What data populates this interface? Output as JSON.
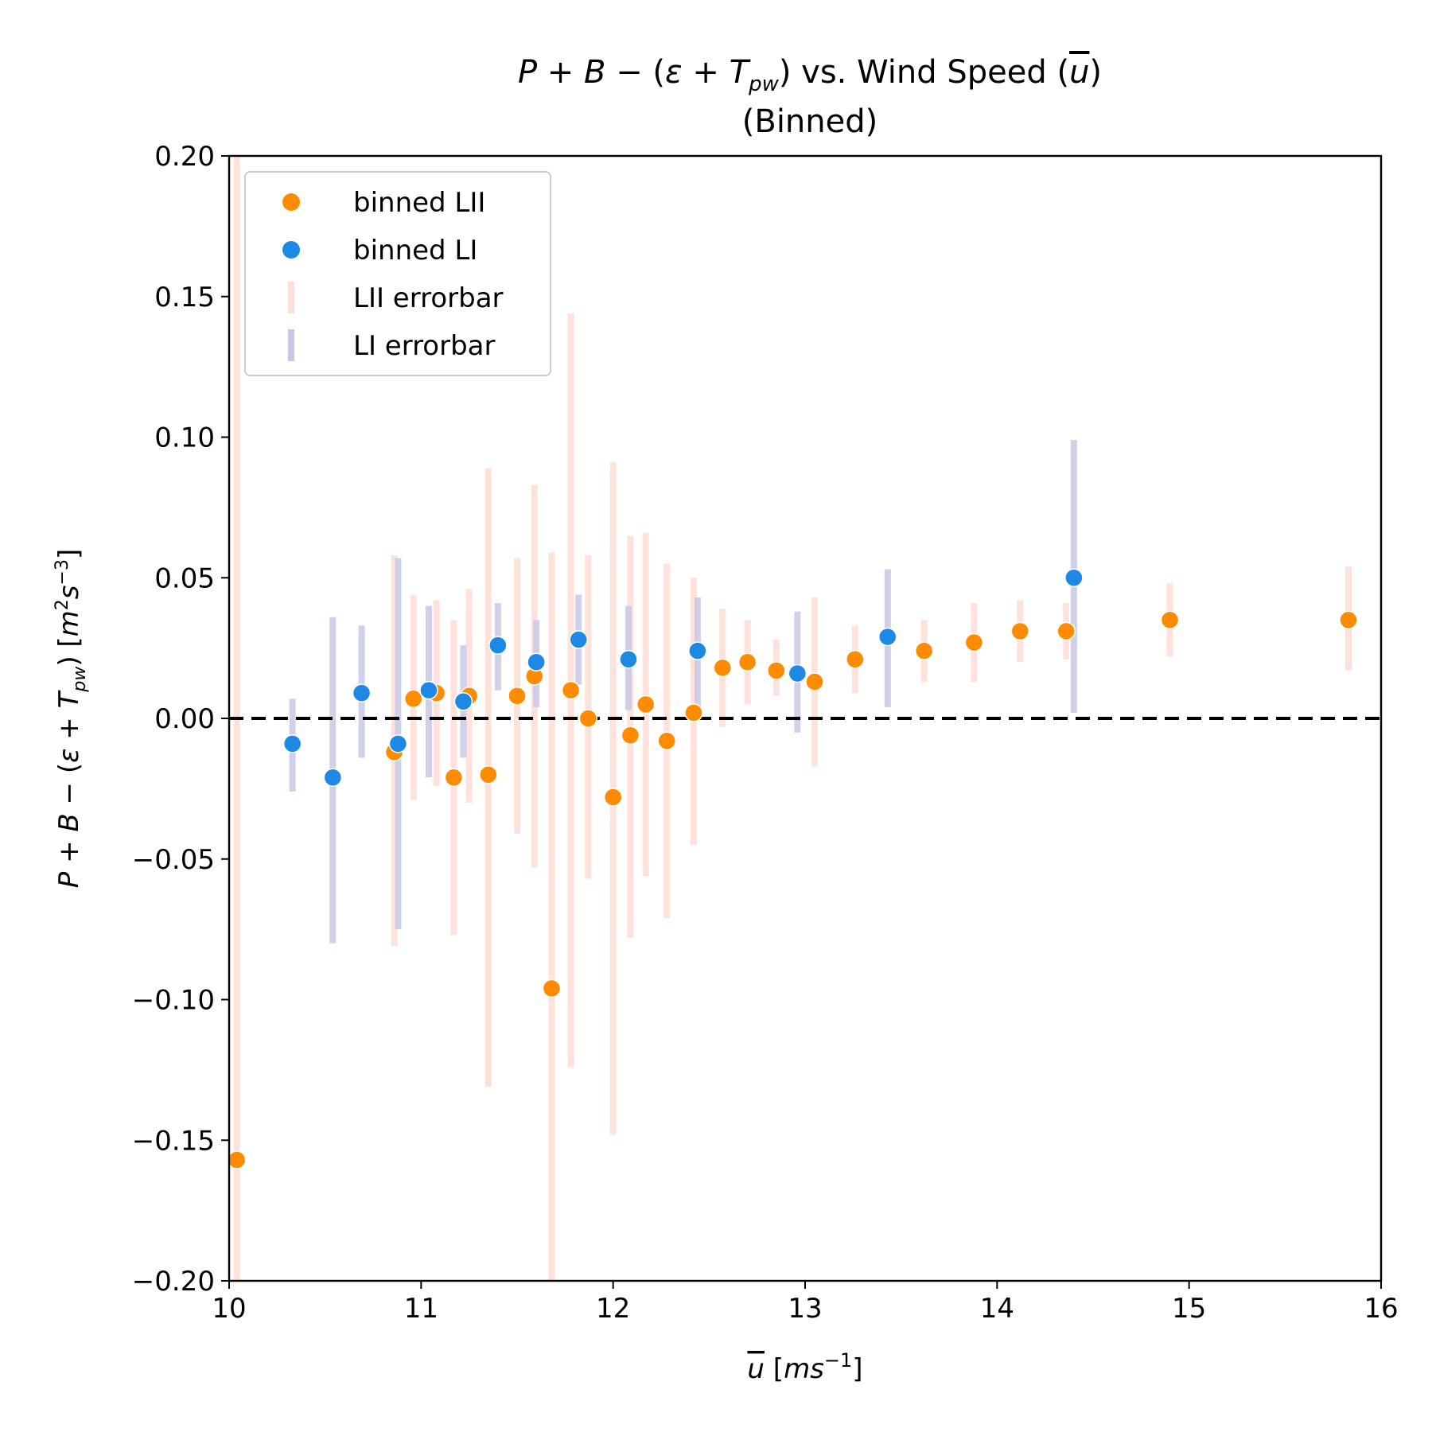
{
  "chart_data": {
    "type": "scatter",
    "title": "P + B − (ε + T_pw) vs. Wind Speed (ū)",
    "subtitle": "(Binned)",
    "xlabel": "ū [ms⁻¹]",
    "ylabel": "P + B − (ε + T_pw) [m²s⁻³]",
    "xlim": [
      10,
      16
    ],
    "ylim": [
      -0.2,
      0.2
    ],
    "x_ticks": [
      10,
      11,
      12,
      13,
      14,
      15,
      16
    ],
    "y_ticks": [
      -0.2,
      -0.15,
      -0.1,
      -0.05,
      0.0,
      0.05,
      0.1,
      0.15,
      0.2
    ],
    "x_tick_labels": [
      "10",
      "11",
      "12",
      "13",
      "14",
      "15",
      "16"
    ],
    "y_tick_labels": [
      "−0.20",
      "−0.15",
      "−0.10",
      "−0.05",
      "0.00",
      "0.05",
      "0.10",
      "0.15",
      "0.20"
    ],
    "reference_line": {
      "y": 0.0,
      "style": "dashed",
      "color": "#000000"
    },
    "legend_position": "upper-left",
    "legend": [
      "binned LII",
      "binned LI",
      "LII errorbar",
      "LI errorbar"
    ],
    "series": [
      {
        "name": "binned LII",
        "color": "#ff8c00",
        "errorbar_color": "#ffdfd8",
        "points": [
          {
            "x": 10.04,
            "y": -0.157,
            "lo": -0.2,
            "hi": 0.2
          },
          {
            "x": 10.86,
            "y": -0.012,
            "lo": -0.081,
            "hi": 0.058
          },
          {
            "x": 10.96,
            "y": 0.007,
            "lo": -0.029,
            "hi": 0.044
          },
          {
            "x": 11.08,
            "y": 0.009,
            "lo": -0.024,
            "hi": 0.042
          },
          {
            "x": 11.17,
            "y": -0.021,
            "lo": -0.077,
            "hi": 0.035
          },
          {
            "x": 11.25,
            "y": 0.008,
            "lo": -0.03,
            "hi": 0.046
          },
          {
            "x": 11.35,
            "y": -0.02,
            "lo": -0.131,
            "hi": 0.089
          },
          {
            "x": 11.5,
            "y": 0.008,
            "lo": -0.041,
            "hi": 0.057
          },
          {
            "x": 11.59,
            "y": 0.015,
            "lo": -0.053,
            "hi": 0.083
          },
          {
            "x": 11.68,
            "y": -0.096,
            "lo": -0.2,
            "hi": 0.059
          },
          {
            "x": 11.78,
            "y": 0.01,
            "lo": -0.124,
            "hi": 0.144
          },
          {
            "x": 11.87,
            "y": 0.0,
            "lo": -0.057,
            "hi": 0.058
          },
          {
            "x": 12.0,
            "y": -0.028,
            "lo": -0.148,
            "hi": 0.091
          },
          {
            "x": 12.09,
            "y": -0.006,
            "lo": -0.078,
            "hi": 0.065
          },
          {
            "x": 12.17,
            "y": 0.005,
            "lo": -0.056,
            "hi": 0.066
          },
          {
            "x": 12.28,
            "y": -0.008,
            "lo": -0.071,
            "hi": 0.055
          },
          {
            "x": 12.42,
            "y": 0.002,
            "lo": -0.045,
            "hi": 0.05
          },
          {
            "x": 12.57,
            "y": 0.018,
            "lo": -0.003,
            "hi": 0.039
          },
          {
            "x": 12.7,
            "y": 0.02,
            "lo": 0.005,
            "hi": 0.035
          },
          {
            "x": 12.85,
            "y": 0.017,
            "lo": 0.008,
            "hi": 0.028
          },
          {
            "x": 13.05,
            "y": 0.013,
            "lo": -0.017,
            "hi": 0.043
          },
          {
            "x": 13.26,
            "y": 0.021,
            "lo": 0.009,
            "hi": 0.033
          },
          {
            "x": 13.62,
            "y": 0.024,
            "lo": 0.013,
            "hi": 0.035
          },
          {
            "x": 13.88,
            "y": 0.027,
            "lo": 0.013,
            "hi": 0.041
          },
          {
            "x": 14.12,
            "y": 0.031,
            "lo": 0.02,
            "hi": 0.042
          },
          {
            "x": 14.36,
            "y": 0.031,
            "lo": 0.021,
            "hi": 0.041
          },
          {
            "x": 14.9,
            "y": 0.035,
            "lo": 0.022,
            "hi": 0.048
          },
          {
            "x": 15.83,
            "y": 0.035,
            "lo": 0.017,
            "hi": 0.054
          }
        ]
      },
      {
        "name": "binned LI",
        "color": "#1e88e5",
        "errorbar_color": "#c8c8e4",
        "points": [
          {
            "x": 10.33,
            "y": -0.009,
            "lo": -0.026,
            "hi": 0.007
          },
          {
            "x": 10.54,
            "y": -0.021,
            "lo": -0.08,
            "hi": 0.036
          },
          {
            "x": 10.69,
            "y": 0.009,
            "lo": -0.014,
            "hi": 0.033
          },
          {
            "x": 10.88,
            "y": -0.009,
            "lo": -0.075,
            "hi": 0.057
          },
          {
            "x": 11.04,
            "y": 0.01,
            "lo": -0.021,
            "hi": 0.04
          },
          {
            "x": 11.22,
            "y": 0.006,
            "lo": -0.014,
            "hi": 0.026
          },
          {
            "x": 11.4,
            "y": 0.026,
            "lo": 0.01,
            "hi": 0.041
          },
          {
            "x": 11.6,
            "y": 0.02,
            "lo": 0.004,
            "hi": 0.035
          },
          {
            "x": 11.82,
            "y": 0.028,
            "lo": 0.012,
            "hi": 0.044
          },
          {
            "x": 12.08,
            "y": 0.021,
            "lo": 0.003,
            "hi": 0.04
          },
          {
            "x": 12.44,
            "y": 0.024,
            "lo": 0.004,
            "hi": 0.043
          },
          {
            "x": 12.96,
            "y": 0.016,
            "lo": -0.005,
            "hi": 0.038
          },
          {
            "x": 13.43,
            "y": 0.029,
            "lo": 0.004,
            "hi": 0.053
          },
          {
            "x": 14.4,
            "y": 0.05,
            "lo": 0.002,
            "hi": 0.099
          }
        ]
      }
    ]
  }
}
